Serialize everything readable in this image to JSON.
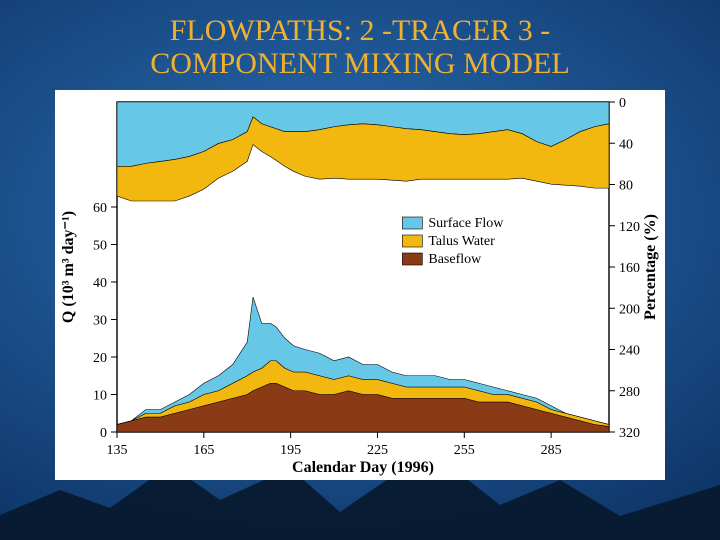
{
  "title_line1": "FLOWPATHS: 2 -TRACER 3 -",
  "title_line2": "COMPONENT MIXING MODEL",
  "chart": {
    "type": "stacked-area-dual",
    "background_color": "#ffffff",
    "stroke_color": "#000000",
    "y_left_label": "Q (10³ m³ day⁻¹)",
    "y_right_label": "Percentage (%)",
    "x_label": "Calendar Day (1996)",
    "x": [
      135,
      140,
      145,
      150,
      155,
      160,
      165,
      170,
      175,
      180,
      182,
      185,
      188,
      190,
      193,
      196,
      200,
      205,
      210,
      215,
      220,
      225,
      230,
      235,
      240,
      245,
      250,
      255,
      260,
      265,
      270,
      275,
      280,
      285,
      290,
      295,
      300,
      305
    ],
    "xlim": [
      135,
      305
    ],
    "xticks": [
      135,
      165,
      195,
      225,
      255,
      285
    ],
    "y_left_lim": [
      0,
      60
    ],
    "y_left_ticks": [
      0,
      10,
      20,
      30,
      40,
      50,
      60
    ],
    "y_right_lim": [
      0,
      320
    ],
    "y_right_ticks": [
      0,
      40,
      80,
      120,
      160,
      200,
      240,
      280,
      320
    ],
    "legend_items": [
      "Surface Flow",
      "Talus Water",
      "Baseflow"
    ],
    "colors": {
      "surface": "#67c7e6",
      "talus": "#f2b80f",
      "base": "#8b3a16"
    },
    "lower": {
      "baseflow": [
        2,
        3,
        4,
        4,
        5,
        6,
        7,
        8,
        9,
        10,
        11,
        12,
        13,
        13,
        12,
        11,
        11,
        10,
        10,
        11,
        10,
        10,
        9,
        9,
        9,
        9,
        9,
        9,
        8,
        8,
        8,
        7,
        6,
        5,
        4,
        3,
        2,
        1.5
      ],
      "talus": [
        0,
        0,
        1,
        1,
        2,
        2,
        3,
        3,
        4,
        5,
        5,
        5,
        6,
        6,
        5,
        5,
        5,
        5,
        4,
        4,
        4,
        4,
        4,
        3,
        3,
        3,
        3,
        3,
        3,
        2,
        2,
        2,
        2,
        1,
        1,
        1,
        1,
        0.5
      ],
      "surface": [
        0,
        0,
        1,
        1,
        1,
        2,
        3,
        4,
        5,
        9,
        20,
        12,
        10,
        9,
        8,
        7,
        6,
        6,
        5,
        5,
        4,
        4,
        3,
        3,
        3,
        3,
        2,
        2,
        2,
        2,
        1,
        1,
        1,
        1,
        0,
        0,
        0,
        0
      ]
    },
    "upper": {
      "baseflow_pct": [
        0,
        0,
        0,
        0,
        0,
        0,
        0,
        0,
        0,
        0,
        0,
        0,
        0,
        0,
        0,
        0,
        0,
        0,
        0,
        0,
        0,
        0,
        0,
        0,
        0,
        0,
        0,
        0,
        0,
        0,
        0,
        0,
        0,
        0,
        0,
        0,
        0,
        0
      ],
      "talus_pct": [
        30,
        35,
        38,
        40,
        42,
        40,
        38,
        35,
        32,
        30,
        28,
        28,
        30,
        32,
        35,
        40,
        45,
        50,
        52,
        55,
        56,
        55,
        54,
        53,
        50,
        48,
        46,
        45,
        46,
        48,
        50,
        45,
        40,
        38,
        46,
        55,
        62,
        65
      ],
      "surface_pct": [
        65,
        65,
        62,
        60,
        58,
        55,
        50,
        42,
        38,
        30,
        15,
        22,
        25,
        27,
        30,
        30,
        30,
        28,
        25,
        23,
        22,
        23,
        25,
        27,
        28,
        30,
        32,
        33,
        32,
        30,
        28,
        32,
        40,
        45,
        38,
        30,
        25,
        22
      ]
    }
  }
}
